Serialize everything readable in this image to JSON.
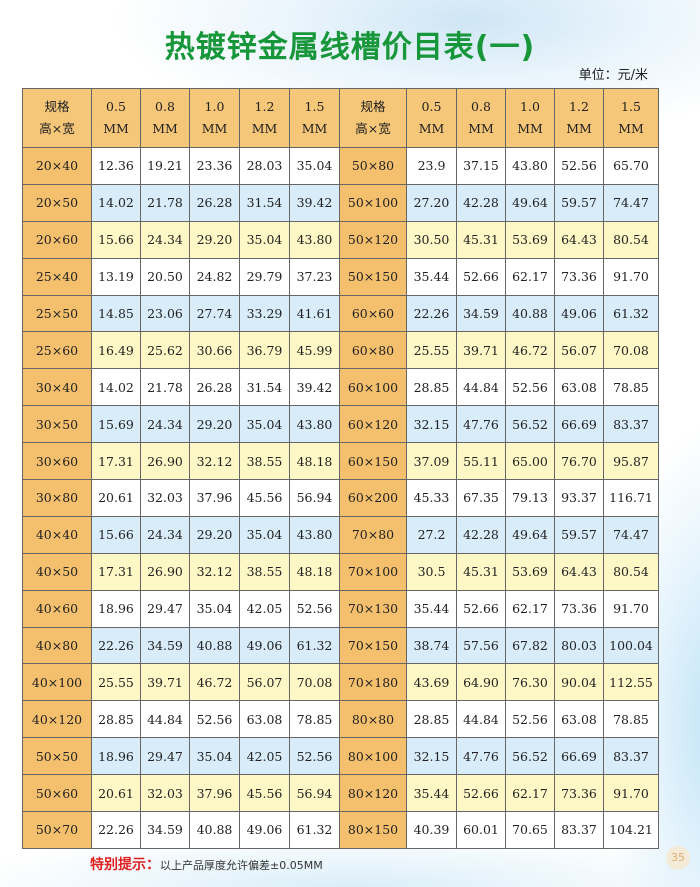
{
  "title": "热镀锌金属线槽价目表(一)",
  "unit": "单位：元/米",
  "header": {
    "spec": [
      "规格",
      "高×宽"
    ],
    "thickness": [
      [
        "0.5",
        "MM"
      ],
      [
        "0.8",
        "MM"
      ],
      [
        "1.0",
        "MM"
      ],
      [
        "1.2",
        "MM"
      ],
      [
        "1.5",
        "MM"
      ]
    ]
  },
  "rows": [
    {
      "a": "20×40",
      "av": [
        "12.36",
        "19.21",
        "23.36",
        "28.03",
        "35.04"
      ],
      "b": "50×80",
      "bv": [
        "23.9",
        "37.15",
        "43.80",
        "52.56",
        "65.70"
      ]
    },
    {
      "a": "20×50",
      "av": [
        "14.02",
        "21.78",
        "26.28",
        "31.54",
        "39.42"
      ],
      "b": "50×100",
      "bv": [
        "27.20",
        "42.28",
        "49.64",
        "59.57",
        "74.47"
      ]
    },
    {
      "a": "20×60",
      "av": [
        "15.66",
        "24.34",
        "29.20",
        "35.04",
        "43.80"
      ],
      "b": "50×120",
      "bv": [
        "30.50",
        "45.31",
        "53.69",
        "64.43",
        "80.54"
      ]
    },
    {
      "a": "25×40",
      "av": [
        "13.19",
        "20.50",
        "24.82",
        "29.79",
        "37.23"
      ],
      "b": "50×150",
      "bv": [
        "35.44",
        "52.66",
        "62.17",
        "73.36",
        "91.70"
      ]
    },
    {
      "a": "25×50",
      "av": [
        "14.85",
        "23.06",
        "27.74",
        "33.29",
        "41.61"
      ],
      "b": "60×60",
      "bv": [
        "22.26",
        "34.59",
        "40.88",
        "49.06",
        "61.32"
      ]
    },
    {
      "a": "25×60",
      "av": [
        "16.49",
        "25.62",
        "30.66",
        "36.79",
        "45.99"
      ],
      "b": "60×80",
      "bv": [
        "25.55",
        "39.71",
        "46.72",
        "56.07",
        "70.08"
      ]
    },
    {
      "a": "30×40",
      "av": [
        "14.02",
        "21.78",
        "26.28",
        "31.54",
        "39.42"
      ],
      "b": "60×100",
      "bv": [
        "28.85",
        "44.84",
        "52.56",
        "63.08",
        "78.85"
      ]
    },
    {
      "a": "30×50",
      "av": [
        "15.69",
        "24.34",
        "29.20",
        "35.04",
        "43.80"
      ],
      "b": "60×120",
      "bv": [
        "32.15",
        "47.76",
        "56.52",
        "66.69",
        "83.37"
      ]
    },
    {
      "a": "30×60",
      "av": [
        "17.31",
        "26.90",
        "32.12",
        "38.55",
        "48.18"
      ],
      "b": "60×150",
      "bv": [
        "37.09",
        "55.11",
        "65.00",
        "76.70",
        "95.87"
      ]
    },
    {
      "a": "30×80",
      "av": [
        "20.61",
        "32.03",
        "37.96",
        "45.56",
        "56.94"
      ],
      "b": "60×200",
      "bv": [
        "45.33",
        "67.35",
        "79.13",
        "93.37",
        "116.71"
      ]
    },
    {
      "a": "40×40",
      "av": [
        "15.66",
        "24.34",
        "29.20",
        "35.04",
        "43.80"
      ],
      "b": "70×80",
      "bv": [
        "27.2",
        "42.28",
        "49.64",
        "59.57",
        "74.47"
      ]
    },
    {
      "a": "40×50",
      "av": [
        "17.31",
        "26.90",
        "32.12",
        "38.55",
        "48.18"
      ],
      "b": "70×100",
      "bv": [
        "30.5",
        "45.31",
        "53.69",
        "64.43",
        "80.54"
      ]
    },
    {
      "a": "40×60",
      "av": [
        "18.96",
        "29.47",
        "35.04",
        "42.05",
        "52.56"
      ],
      "b": "70×130",
      "bv": [
        "35.44",
        "52.66",
        "62.17",
        "73.36",
        "91.70"
      ]
    },
    {
      "a": "40×80",
      "av": [
        "22.26",
        "34.59",
        "40.88",
        "49.06",
        "61.32"
      ],
      "b": "70×150",
      "bv": [
        "38.74",
        "57.56",
        "67.82",
        "80.03",
        "100.04"
      ]
    },
    {
      "a": "40×100",
      "av": [
        "25.55",
        "39.71",
        "46.72",
        "56.07",
        "70.08"
      ],
      "b": "70×180",
      "bv": [
        "43.69",
        "64.90",
        "76.30",
        "90.04",
        "112.55"
      ]
    },
    {
      "a": "40×120",
      "av": [
        "28.85",
        "44.84",
        "52.56",
        "63.08",
        "78.85"
      ],
      "b": "80×80",
      "bv": [
        "28.85",
        "44.84",
        "52.56",
        "63.08",
        "78.85"
      ]
    },
    {
      "a": "50×50",
      "av": [
        "18.96",
        "29.47",
        "35.04",
        "42.05",
        "52.56"
      ],
      "b": "80×100",
      "bv": [
        "32.15",
        "47.76",
        "56.52",
        "66.69",
        "83.37"
      ]
    },
    {
      "a": "50×60",
      "av": [
        "20.61",
        "32.03",
        "37.96",
        "45.56",
        "56.94"
      ],
      "b": "80×120",
      "bv": [
        "35.44",
        "52.66",
        "62.17",
        "73.36",
        "91.70"
      ]
    },
    {
      "a": "50×70",
      "av": [
        "22.26",
        "34.59",
        "40.88",
        "49.06",
        "61.32"
      ],
      "b": "80×150",
      "bv": [
        "40.39",
        "60.01",
        "70.65",
        "83.37",
        "104.21"
      ]
    }
  ],
  "note": {
    "label": "特别提示：",
    "text": "以上产品厚度允许偏差±0.05MM"
  },
  "page_number": "35",
  "colors": {
    "title": "#17973a",
    "spec_cell": "#f5c06e",
    "row_white": "#ffffff",
    "row_blue": "#d8ecfa",
    "row_yellow": "#fdf8c6",
    "note_label": "#e02020"
  }
}
